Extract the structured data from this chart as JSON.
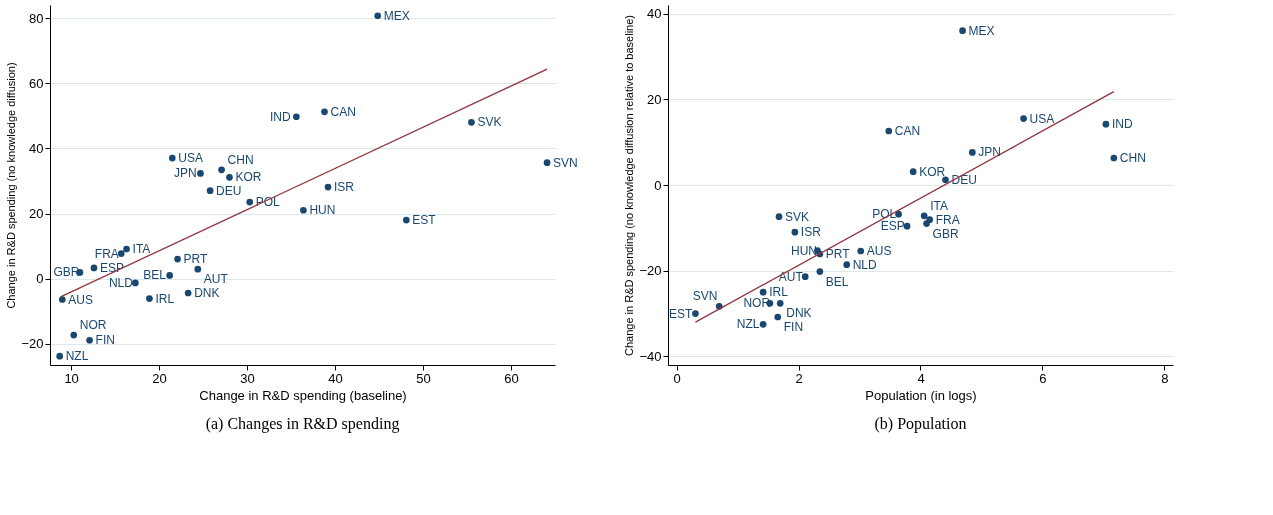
{
  "chart_data": [
    {
      "type": "scatter",
      "title": "(a) Changes in R&D spending",
      "xlabel": "Change in R&D spending (baseline)",
      "ylabel": "Change in R&D spending (no knowledge diffusion)",
      "xlim": [
        7.6,
        65
      ],
      "ylim": [
        -26.5,
        84
      ],
      "xticks": [
        10,
        20,
        30,
        40,
        50,
        60
      ],
      "yticks": [
        -20,
        0,
        20,
        40,
        60,
        80
      ],
      "grid": "y",
      "marker": "circle",
      "series": [
        {
          "color": "#1a476f",
          "x": [
            44.85,
            35.6,
            38.8,
            55.5,
            64.1,
            21.5,
            24.7,
            27.1,
            28.0,
            25.8,
            30.3,
            39.2,
            36.4,
            48.1,
            16.3,
            15.7,
            22.1,
            12.6,
            24.4,
            11.0,
            21.2,
            17.3,
            23.3,
            9.0,
            18.9,
            10.3,
            12.1,
            8.7
          ],
          "values": [
            80.7,
            49.7,
            51.2,
            48.0,
            35.6,
            37.0,
            32.3,
            33.4,
            31.1,
            27.0,
            23.5,
            28.1,
            21.0,
            18.0,
            9.1,
            7.7,
            6.0,
            3.3,
            2.9,
            1.9,
            1.0,
            -1.3,
            -4.4,
            -6.4,
            -6.1,
            -17.3,
            -18.9,
            -23.8
          ],
          "value_labels": [
            "MEX",
            "IND",
            "CAN",
            "SVK",
            "SVN",
            "USA",
            "JPN",
            "CHN",
            "KOR",
            "DEU",
            "POL",
            "ISR",
            "HUN",
            "EST",
            "ITA",
            "FRA",
            "PRT",
            "ESP",
            "AUT",
            "GBR",
            "BEL",
            "NLD",
            "DNK",
            "AUS",
            "IRL",
            "NOR",
            "FIN",
            "NZL"
          ]
        },
        {
          "type": "line",
          "marker": "none",
          "color": "#90353b",
          "x": [
            8.8,
            64.1
          ],
          "values": [
            -5.6,
            64.3
          ]
        }
      ]
    },
    {
      "type": "scatter",
      "title": "(b) Population",
      "xlabel": "Population (in logs)",
      "ylabel": "Change in R&D spending (no knowledge diffusion relative to baseline)",
      "xlim": [
        -0.14,
        8.14
      ],
      "ylim": [
        -42,
        42
      ],
      "xticks": [
        0,
        2,
        4,
        6,
        8
      ],
      "yticks": [
        -40,
        -20,
        0,
        20,
        40
      ],
      "grid": "y",
      "marker": "circle",
      "series": [
        {
          "color": "#1a476f",
          "x": [
            4.69,
            5.69,
            7.04,
            3.48,
            4.85,
            7.17,
            3.88,
            4.41,
            1.68,
            3.64,
            4.06,
            4.15,
            4.1,
            3.78,
            1.94,
            2.31,
            2.35,
            3.02,
            2.79,
            2.35,
            2.11,
            1.42,
            1.53,
            1.7,
            0.7,
            0.31,
            1.66,
            1.42
          ],
          "values": [
            36.0,
            15.5,
            14.2,
            12.6,
            7.6,
            6.3,
            3.1,
            1.2,
            -7.4,
            -6.8,
            -7.2,
            -8.1,
            -9.0,
            -9.6,
            -11.0,
            -15.3,
            -16.1,
            -15.4,
            -18.6,
            -20.2,
            -21.4,
            -25.0,
            -27.6,
            -27.6,
            -28.3,
            -30.0,
            -30.8,
            -32.5
          ],
          "value_labels": [
            "MEX",
            "USA",
            "IND",
            "CAN",
            "JPN",
            "CHN",
            "KOR",
            "DEU",
            "SVK",
            "POL",
            "ITA",
            "FRA",
            "GBR",
            "ESP",
            "ISR",
            "HUN",
            "PRT",
            "AUS",
            "NLD",
            "BEL",
            "AUT",
            "IRL",
            "NOR",
            "DNK",
            "SVN",
            "EST",
            "FIN",
            "NZL"
          ]
        },
        {
          "type": "line",
          "marker": "none",
          "color": "#90353b",
          "x": [
            0.31,
            7.17
          ],
          "values": [
            -32.0,
            21.8
          ]
        }
      ]
    }
  ]
}
